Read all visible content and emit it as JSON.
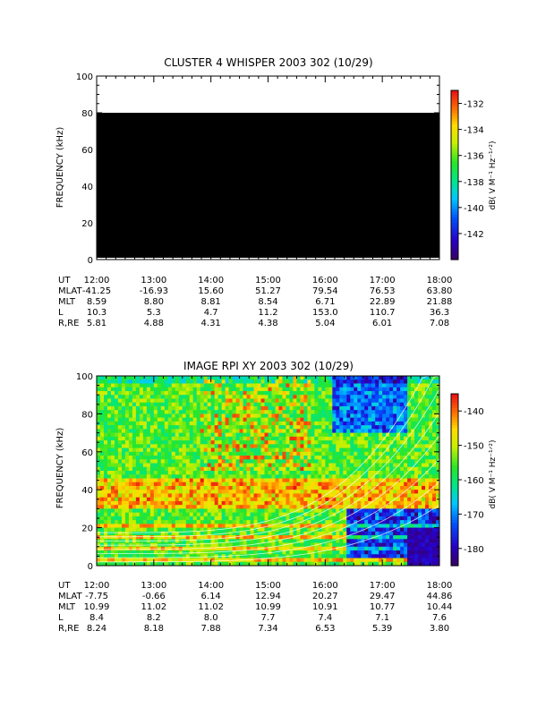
{
  "chart_data": [
    {
      "type": "heatmap",
      "title": "CLUSTER 4 WHISPER 2003 302 (10/29)",
      "ylabel": "FREQUENCY (kHz)",
      "ylim": [
        0,
        100
      ],
      "y_ticks": [
        "0",
        "20",
        "40",
        "60",
        "80",
        "100"
      ],
      "y_tick_values": [
        0,
        20,
        40,
        60,
        80,
        100
      ],
      "xlim": [
        "12:00",
        "18:00"
      ],
      "colorbar": {
        "label": "dB( V M⁻¹ Hz⁻¹ᐟ²)",
        "range": [
          -144,
          -131
        ],
        "ticks": [
          "-132",
          "-134",
          "-136",
          "-138",
          "-140",
          "-142"
        ],
        "tick_values": [
          -132,
          -134,
          -136,
          -138,
          -140,
          -142
        ]
      },
      "data_region": {
        "freq_range_khz": [
          0,
          80
        ],
        "color": "#000000"
      },
      "ephemeris": {
        "labels": [
          "UT",
          "MLAT",
          "MLT",
          "L",
          "R,RE"
        ],
        "columns": [
          [
            "12:00",
            "-41.25",
            "8.59",
            "10.3",
            "5.81"
          ],
          [
            "13:00",
            "-16.93",
            "8.80",
            "5.3",
            "4.88"
          ],
          [
            "14:00",
            "15.60",
            "8.81",
            "4.7",
            "4.31"
          ],
          [
            "15:00",
            "51.27",
            "8.54",
            "11.2",
            "4.38"
          ],
          [
            "16:00",
            "79.54",
            "6.71",
            "153.0",
            "5.04"
          ],
          [
            "17:00",
            "76.53",
            "22.89",
            "110.7",
            "6.01"
          ],
          [
            "18:00",
            "63.80",
            "21.88",
            "36.3",
            "7.08"
          ]
        ]
      }
    },
    {
      "type": "heatmap",
      "title": "IMAGE RPI XY 2003 302 (10/29)",
      "ylabel": "FREQUENCY (kHz)",
      "ylim": [
        0,
        100
      ],
      "y_ticks": [
        "0",
        "20",
        "40",
        "60",
        "80",
        "100"
      ],
      "y_tick_values": [
        0,
        20,
        40,
        60,
        80,
        100
      ],
      "xlim": [
        "12:00",
        "18:00"
      ],
      "colorbar": {
        "label": "dB( V M⁻¹ Hz⁻¹ᐟ²)",
        "range": [
          -185,
          -135
        ],
        "ticks": [
          "-140",
          "-150",
          "-160",
          "-170",
          "-180"
        ],
        "tick_values": [
          -140,
          -150,
          -160,
          -170,
          -180
        ]
      },
      "ephemeris": {
        "labels": [
          "UT",
          "MLAT",
          "MLT",
          "L",
          "R,RE"
        ],
        "columns": [
          [
            "12:00",
            "-7.75",
            "10.99",
            "8.4",
            "8.24"
          ],
          [
            "13:00",
            "-0.66",
            "11.02",
            "8.2",
            "8.18"
          ],
          [
            "14:00",
            "6.14",
            "11.02",
            "8.0",
            "7.88"
          ],
          [
            "15:00",
            "12.94",
            "10.99",
            "7.7",
            "7.34"
          ],
          [
            "16:00",
            "20.27",
            "10.91",
            "7.4",
            "6.53"
          ],
          [
            "17:00",
            "29.47",
            "10.77",
            "7.1",
            "5.39"
          ],
          [
            "18:00",
            "44.86",
            "10.44",
            "7.6",
            "3.80"
          ]
        ]
      }
    }
  ]
}
